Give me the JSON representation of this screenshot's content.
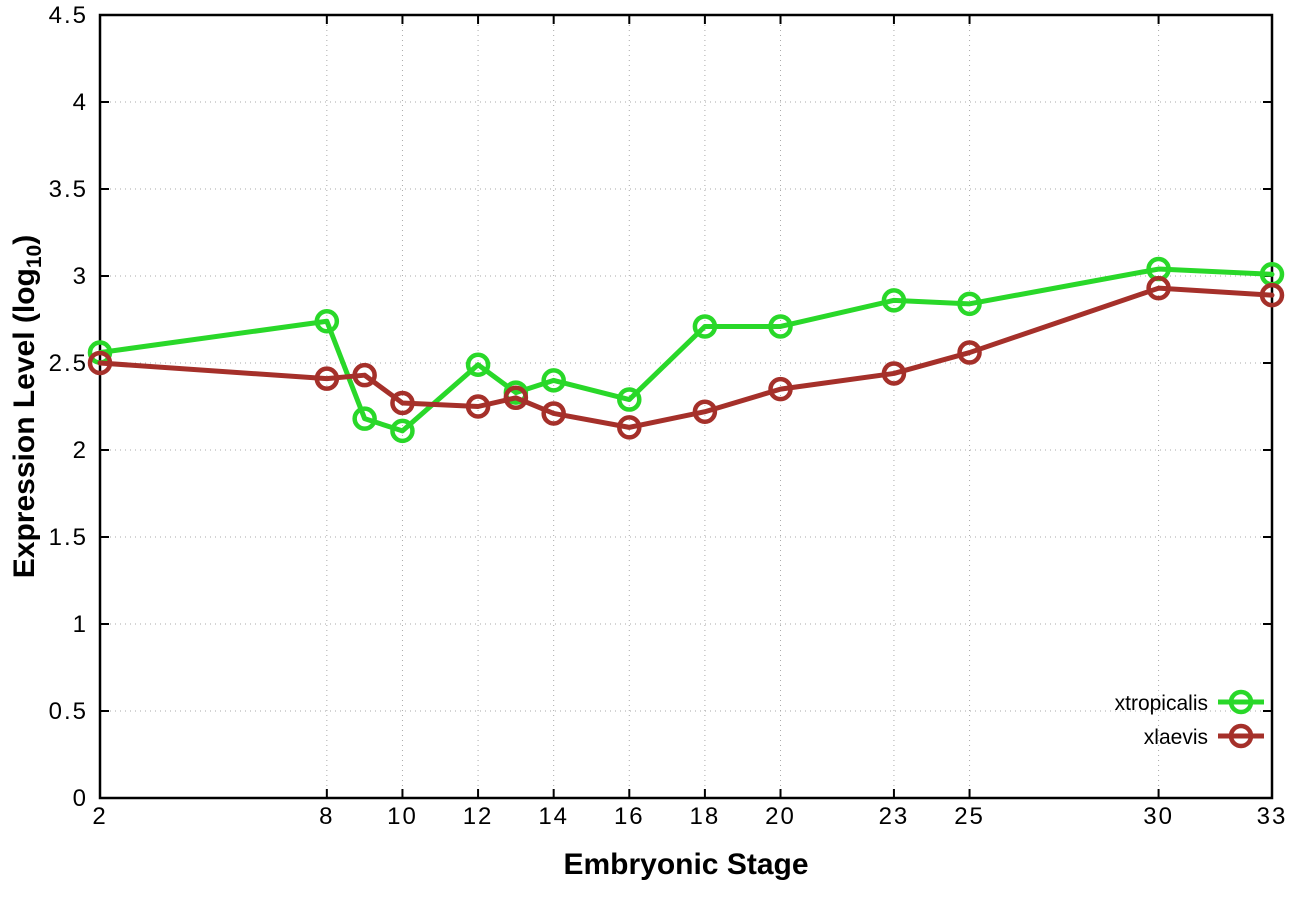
{
  "figure": {
    "background": "#ffffff"
  },
  "chart_data": {
    "type": "line",
    "title": "",
    "xlabel": "Embryonic Stage",
    "ylabel": "Expression Level (log10)",
    "ylabel_parts": {
      "main": "Expression Level (log",
      "sub": "10",
      "close": ")"
    },
    "xlim": [
      2,
      33
    ],
    "ylim": [
      0,
      4.5
    ],
    "x_ticks": [
      2,
      8,
      10,
      12,
      14,
      16,
      18,
      20,
      23,
      25,
      30,
      33
    ],
    "y_ticks": [
      0,
      0.5,
      1,
      1.5,
      2,
      2.5,
      3,
      3.5,
      4,
      4.5
    ],
    "grid": true,
    "grid_color": "#aaaaaa",
    "axis_color": "#000000",
    "legend_position": "bottom-right",
    "x": [
      2,
      8,
      9,
      10,
      12,
      13,
      14,
      16,
      18,
      20,
      23,
      25,
      30,
      33
    ],
    "series": [
      {
        "name": "xtropicalis",
        "color": "#29d829",
        "values": [
          2.56,
          2.74,
          2.18,
          2.11,
          2.49,
          2.33,
          2.4,
          2.29,
          2.71,
          2.71,
          2.86,
          2.84,
          3.04,
          3.01
        ]
      },
      {
        "name": "xlaevis",
        "color": "#a5302a",
        "values": [
          2.5,
          2.41,
          2.43,
          2.27,
          2.25,
          2.3,
          2.21,
          2.13,
          2.22,
          2.35,
          2.44,
          2.56,
          2.93,
          2.89
        ]
      }
    ]
  }
}
